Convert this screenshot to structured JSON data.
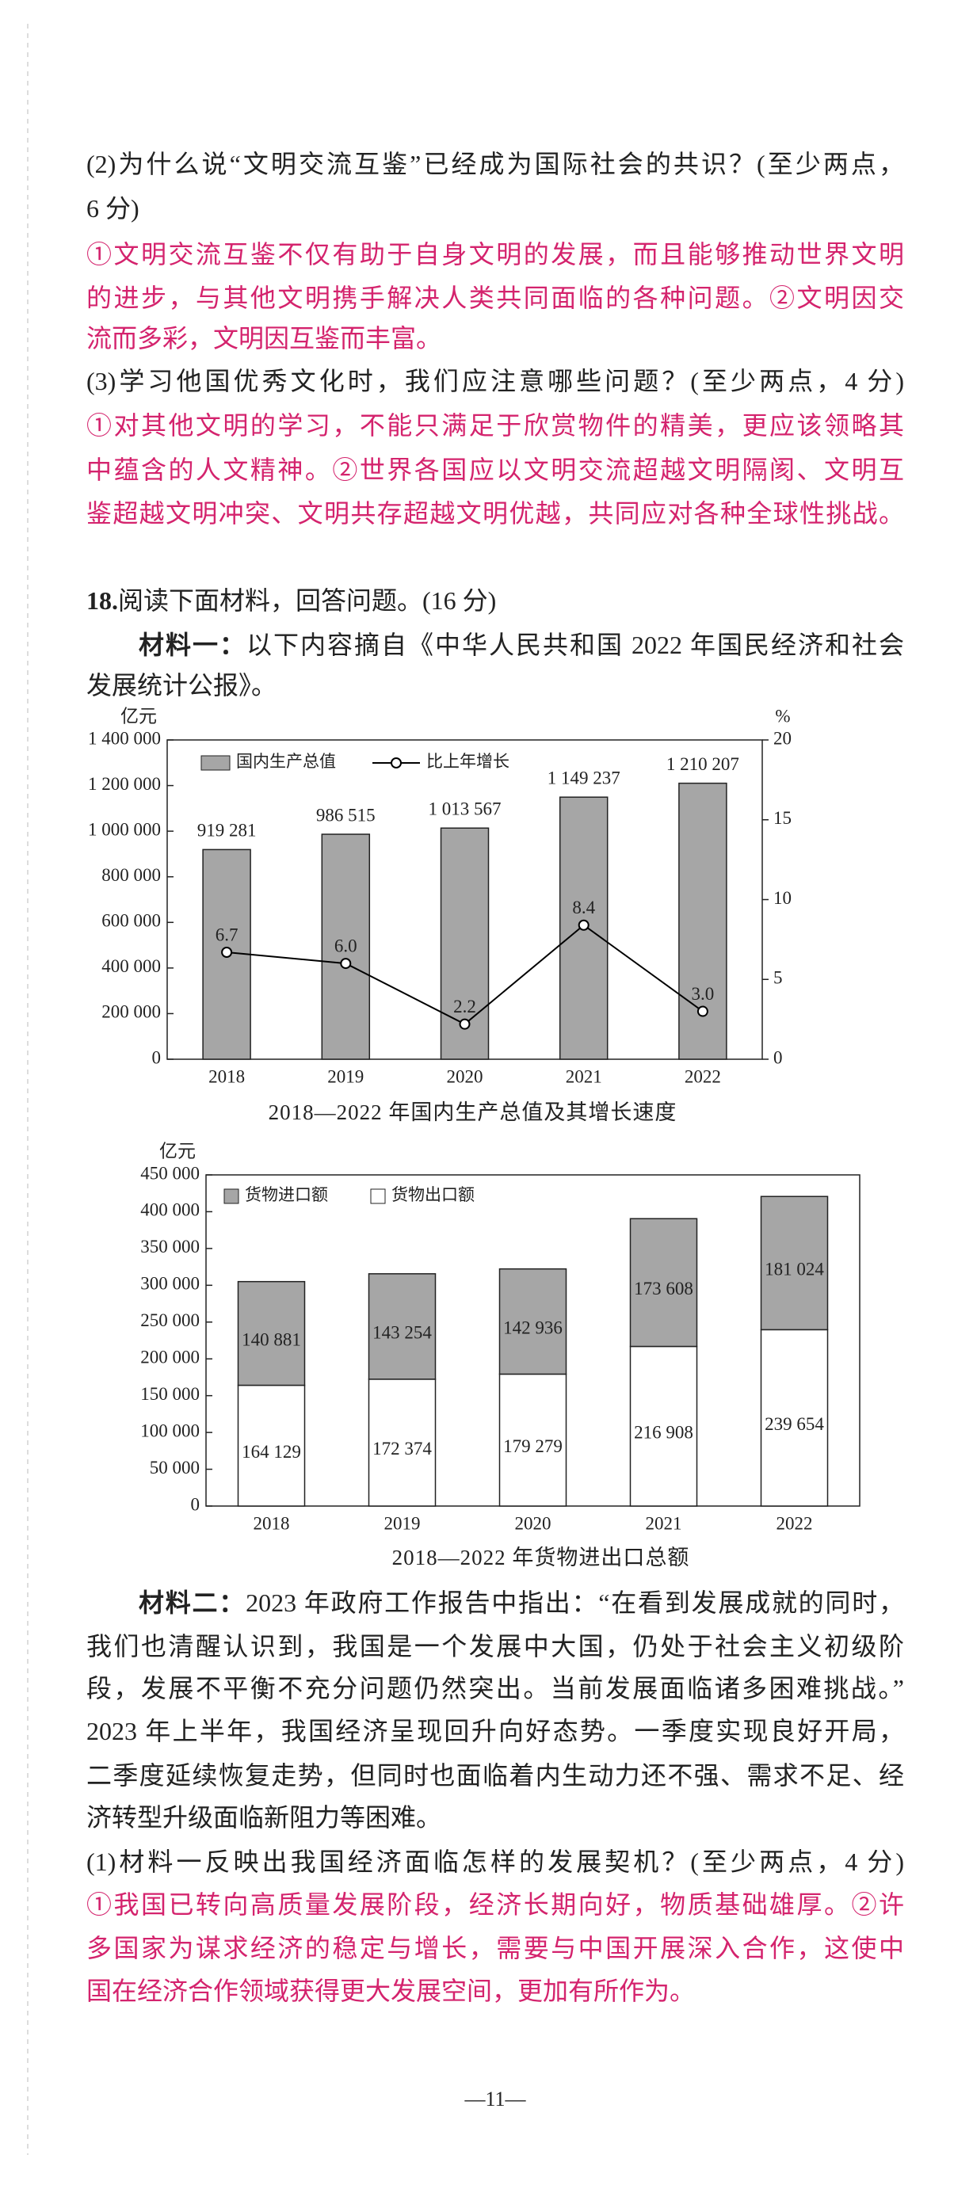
{
  "q2": {
    "question": [
      "(2)为什么说“文明交流互鉴”已经成为国际社会的共识？(至少两点，",
      "6 分)"
    ],
    "answer": [
      "①文明交流互鉴不仅有助于自身文明的发展，而且能够推动世界文明",
      "的进步，与其他文明携手解决人类共同面临的各种问题。②文明因交",
      "流而多彩，文明因互鉴而丰富。"
    ]
  },
  "q3": {
    "question": [
      "(3)学习他国优秀文化时，我们应注意哪些问题？(至少两点，4 分)"
    ],
    "answer": [
      "①对其他文明的学习，不能只满足于欣赏物件的精美，更应该领略其",
      "中蕴含的人文精神。②世界各国应以文明交流超越文明隔阂、文明互",
      "鉴超越文明冲突、文明共存超越文明优越，共同应对各种全球性挑战。"
    ]
  },
  "q18": {
    "number": "18.",
    "text": "阅读下面材料，回答问题。(16 分)"
  },
  "material1": {
    "label": "材料一：",
    "lines": [
      "以下内容摘自《中华人民共和国 2022 年国民经济和社会",
      "发展统计公报》。"
    ]
  },
  "chart_data": [
    {
      "type": "bar",
      "title": "2018—2022 年国内生产总值及其增长速度",
      "y_label": "亿元",
      "y2_label": "%",
      "categories": [
        "2018",
        "2019",
        "2020",
        "2021",
        "2022"
      ],
      "series": [
        {
          "name": "国内生产总值",
          "color": "#a6a6a6",
          "values": [
            919281,
            986515,
            1013567,
            1149237,
            1210207
          ],
          "value_labels": [
            "919 281",
            "986 515",
            "1 013 567",
            "1 149 237",
            "1 210 207"
          ]
        },
        {
          "name": "比上年增长",
          "type": "line",
          "axis": "y2",
          "color": "#000000",
          "values": [
            6.7,
            6.0,
            2.2,
            8.4,
            3.0
          ],
          "value_labels": [
            "6.7",
            "6.0",
            "2.2",
            "8.4",
            "3.0"
          ]
        }
      ],
      "ylim": [
        0,
        1400000
      ],
      "yticks": [
        0,
        {
          "value": 200000,
          "label": "200 000"
        },
        {
          "value": 400000,
          "label": "400 000"
        },
        {
          "value": 600000,
          "label": "600 000"
        },
        {
          "value": 800000,
          "label": "800 000"
        },
        {
          "value": 1000000,
          "label": "1 000 000"
        },
        {
          "value": 1200000,
          "label": "1 200 000"
        },
        {
          "value": 1400000,
          "label": "1 400 000"
        }
      ],
      "y2lim": [
        0,
        20
      ],
      "y2ticks": [
        0,
        5,
        10,
        15,
        20
      ],
      "legend": "top-left"
    },
    {
      "type": "stacked-bar",
      "title": "2018—2022 年货物进出口总额",
      "y_label": "亿元",
      "categories": [
        "2018",
        "2019",
        "2020",
        "2021",
        "2022"
      ],
      "series": [
        {
          "name": "货物进口额",
          "color": "#a6a6a6",
          "values": [
            140881,
            143254,
            142936,
            173608,
            181024
          ],
          "value_labels": [
            "140 881",
            "143 254",
            "142 936",
            "173 608",
            "181 024"
          ]
        },
        {
          "name": "货物出口额",
          "color": "#ffffff",
          "values": [
            164129,
            172374,
            179279,
            216908,
            239654
          ],
          "value_labels": [
            "164 129",
            "172 374",
            "179 279",
            "216 908",
            "239 654"
          ]
        }
      ],
      "ylim": [
        0,
        450000
      ],
      "yticks": [
        0,
        {
          "value": 50000,
          "label": "50 000"
        },
        {
          "value": 100000,
          "label": "100 000"
        },
        {
          "value": 150000,
          "label": "150 000"
        },
        {
          "value": 200000,
          "label": "200 000"
        },
        {
          "value": 250000,
          "label": "250 000"
        },
        {
          "value": 300000,
          "label": "300 000"
        },
        {
          "value": 350000,
          "label": "350 000"
        },
        {
          "value": 400000,
          "label": "400 000"
        },
        {
          "value": 450000,
          "label": "450 000"
        }
      ],
      "legend": "top-left"
    }
  ],
  "material2": {
    "label": "材料二：",
    "lines": [
      "2023 年政府工作报告中指出：“在看到发展成就的同时，",
      "我们也清醒认识到，我国是一个发展中大国，仍处于社会主义初级阶",
      "段，发展不平衡不充分问题仍然突出。当前发展面临诸多困难挑战。”",
      "2023 年上半年，我国经济呈现回升向好态势。一季度实现良好开局，",
      "二季度延续恢复走势，但同时也面临着内生动力还不强、需求不足、经",
      "济转型升级面临新阻力等困难。"
    ]
  },
  "q1": {
    "question": [
      "(1)材料一反映出我国经济面临怎样的发展契机？(至少两点，4 分)"
    ],
    "answer": [
      "①我国已转向高质量发展阶段，经济长期向好，物质基础雄厚。②许",
      "多国家为谋求经济的稳定与增长，需要与中国开展深入合作，这使中",
      "国在经济合作领域获得更大发展空间，更加有所作为。"
    ]
  },
  "page_number": "—11—"
}
